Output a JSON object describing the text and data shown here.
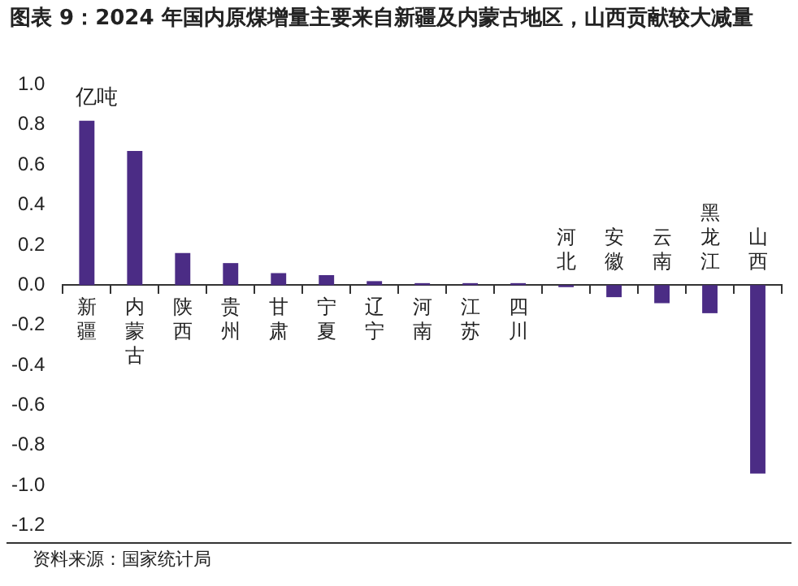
{
  "chart_data": {
    "type": "bar",
    "title": "图表 9：2024 年国内原煤增量主要来自新疆及内蒙古地区，山西贡献较大减量",
    "ylabel": "亿吨",
    "annotations": [
      "资料来源：国家统计局"
    ],
    "categories": [
      "新疆",
      "内蒙古",
      "陕西",
      "贵州",
      "甘肃",
      "宁夏",
      "辽宁",
      "河南",
      "江苏",
      "四川",
      "河北",
      "安徽",
      "云南",
      "黑龙江",
      "山西"
    ],
    "values": [
      0.82,
      0.67,
      0.16,
      0.11,
      0.06,
      0.05,
      0.02,
      0.01,
      0.01,
      0.01,
      -0.01,
      -0.06,
      -0.09,
      -0.14,
      -0.94
    ],
    "color": "#4b2c85",
    "ylim": [
      -1.2,
      1.0
    ],
    "yticks": [
      -1.2,
      {
        "value": -1,
        "label": "-1.0"
      },
      -0.8,
      -0.6,
      -0.4,
      -0.2,
      {
        "value": 0,
        "label": "0.0"
      },
      0.2,
      0.4,
      0.6,
      0.8,
      {
        "value": 1,
        "label": "1.0"
      }
    ]
  }
}
